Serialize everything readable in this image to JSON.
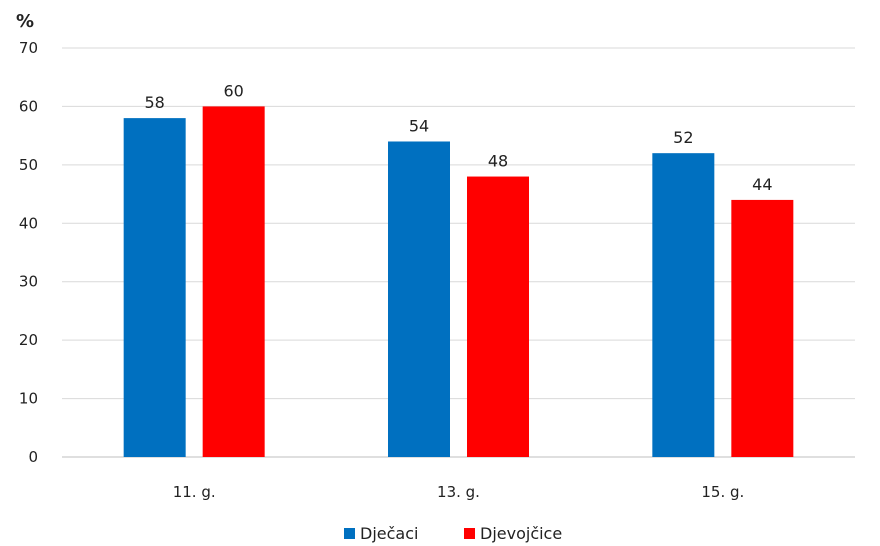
{
  "chart_data": {
    "type": "bar",
    "ylabel": "%",
    "ylim": [
      0,
      70
    ],
    "yticks": [
      0,
      10,
      20,
      30,
      40,
      50,
      60,
      70
    ],
    "categories": [
      "11. g.",
      "13. g.",
      "15. g."
    ],
    "series": [
      {
        "name": "Dječaci",
        "values": [
          58,
          54,
          52
        ],
        "color": "#0070C0"
      },
      {
        "name": "Djevojčice",
        "values": [
          60,
          48,
          44
        ],
        "color": "#FF0000"
      }
    ],
    "grid": true,
    "legend": "bottom-center"
  }
}
